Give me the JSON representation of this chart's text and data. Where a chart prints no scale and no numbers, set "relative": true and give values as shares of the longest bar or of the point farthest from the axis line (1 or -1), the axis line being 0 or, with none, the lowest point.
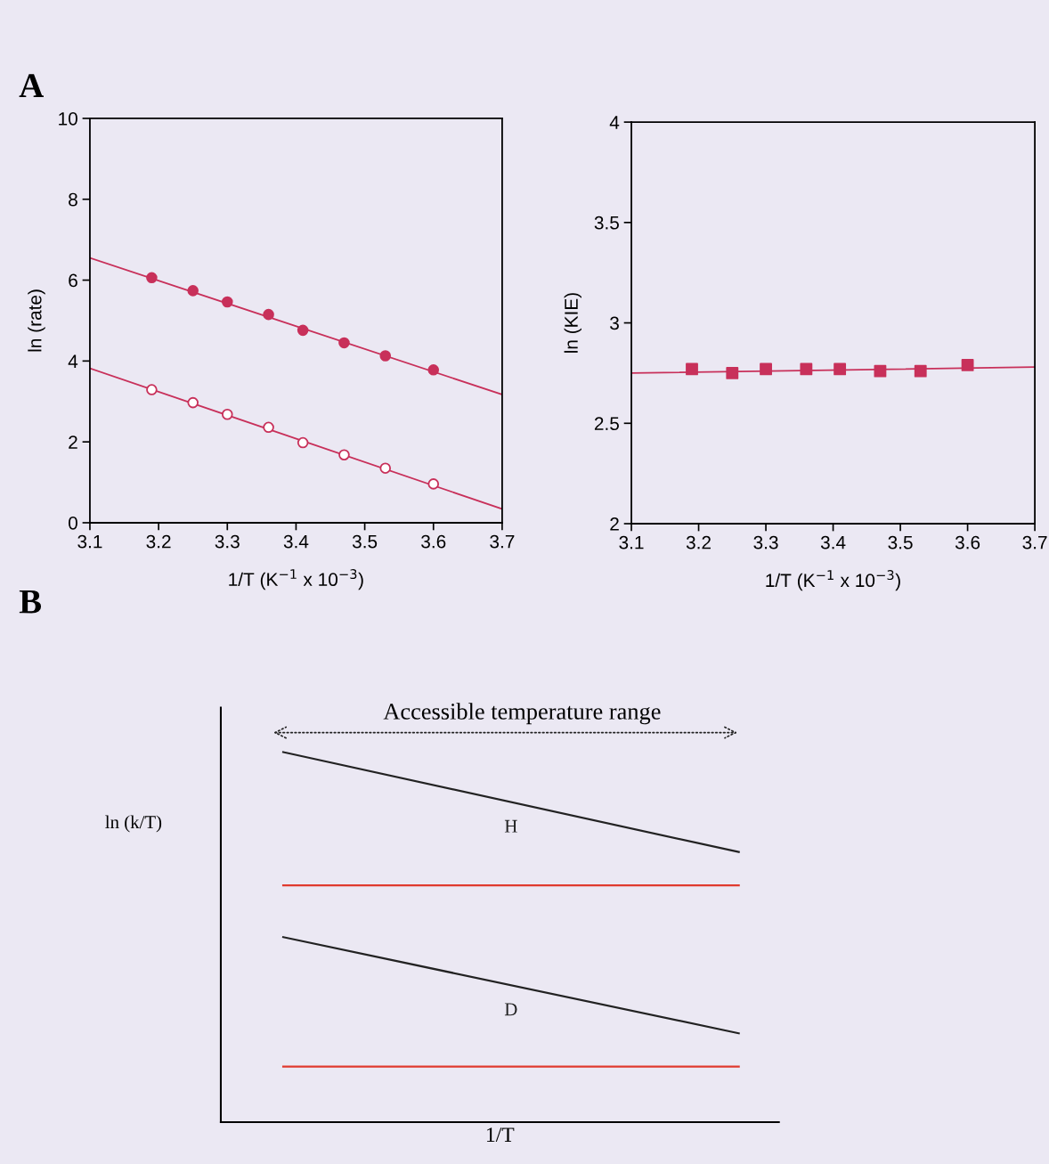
{
  "chart_data": [
    {
      "type": "scatter",
      "ylabel": "ln (rate)",
      "xlabel": "1/T (K$^{−1}$ x 10$^{−3}$)",
      "annotations": [
        "A"
      ],
      "xlim": [
        3.1,
        3.7
      ],
      "xticks": [
        3.1,
        3.2,
        3.3,
        3.4,
        3.5,
        3.6,
        3.7
      ],
      "ylim": [
        0,
        10
      ],
      "yticks": [
        0,
        2,
        4,
        6,
        8,
        10
      ],
      "grid": false,
      "legend": false,
      "series": [
        {
          "type": "line",
          "color": "#c8305a",
          "marker": "none",
          "line_style": "solid",
          "x": [
            3.1,
            3.7
          ],
          "values": [
            6.55,
            3.17
          ]
        },
        {
          "type": "line",
          "color": "#c8305a",
          "marker": "none",
          "line_style": "solid",
          "x": [
            3.1,
            3.7
          ],
          "values": [
            3.82,
            0.34
          ]
        },
        {
          "type": "scatter",
          "color": "#c8305a",
          "marker": "circle",
          "x": [
            3.19,
            3.25,
            3.3,
            3.36,
            3.41,
            3.47,
            3.53,
            3.6
          ],
          "values": [
            6.06,
            5.74,
            5.46,
            5.15,
            4.76,
            4.45,
            4.13,
            3.78
          ]
        },
        {
          "type": "scatter",
          "color": "#c8305a",
          "colors": [
            "#ffffff",
            "#ffffff",
            "#ffffff",
            "#ffffff",
            "#ffffff",
            "#ffffff",
            "#ffffff",
            "#ffffff"
          ],
          "marker": "circle",
          "x": [
            3.19,
            3.25,
            3.3,
            3.36,
            3.41,
            3.47,
            3.53,
            3.6
          ],
          "values": [
            3.29,
            2.97,
            2.68,
            2.36,
            1.98,
            1.68,
            1.35,
            0.96
          ]
        }
      ]
    },
    {
      "type": "scatter",
      "ylabel": "ln (KIE)",
      "xlabel": "1/T (K$^{−1}$ x 10$^{−3}$)",
      "xlim": [
        3.1,
        3.7
      ],
      "xticks": [
        3.1,
        3.2,
        3.3,
        3.4,
        3.5,
        3.6,
        3.7
      ],
      "ylim": [
        2,
        4
      ],
      "yticks": [
        2,
        2.5,
        3,
        3.5,
        4
      ],
      "grid": false,
      "legend": false,
      "series": [
        {
          "type": "line",
          "color": "#c8305a",
          "marker": "none",
          "line_style": "solid",
          "x": [
            3.1,
            3.7
          ],
          "values": [
            2.75,
            2.78
          ]
        },
        {
          "type": "scatter",
          "color": "#c8305a",
          "marker": "square",
          "x": [
            3.19,
            3.25,
            3.3,
            3.36,
            3.41,
            3.47,
            3.53,
            3.6
          ],
          "values": [
            2.77,
            2.75,
            2.77,
            2.77,
            2.77,
            2.76,
            2.76,
            2.79
          ]
        }
      ]
    },
    {
      "type": "line",
      "relative": true,
      "ylabel": "ln (k/T)",
      "xlabel": "1/T",
      "annotations": [
        "B",
        "Accessible temperature range"
      ],
      "categories": [
        null,
        null
      ],
      "grid": false,
      "legend": false,
      "series": [
        {
          "name": "H",
          "color": "#222222",
          "marker": "none",
          "line_style": "solid",
          "values": [
            1,
            0.73
          ]
        },
        {
          "color": "#e03a2e",
          "marker": "none",
          "line_style": "solid",
          "values": [
            0.64,
            0.64
          ]
        },
        {
          "name": "D",
          "color": "#222222",
          "marker": "none",
          "line_style": "solid",
          "values": [
            0.5,
            0.24
          ]
        },
        {
          "color": "#e03a2e",
          "marker": "none",
          "line_style": "solid",
          "values": [
            0.15,
            0.15
          ]
        }
      ]
    }
  ]
}
